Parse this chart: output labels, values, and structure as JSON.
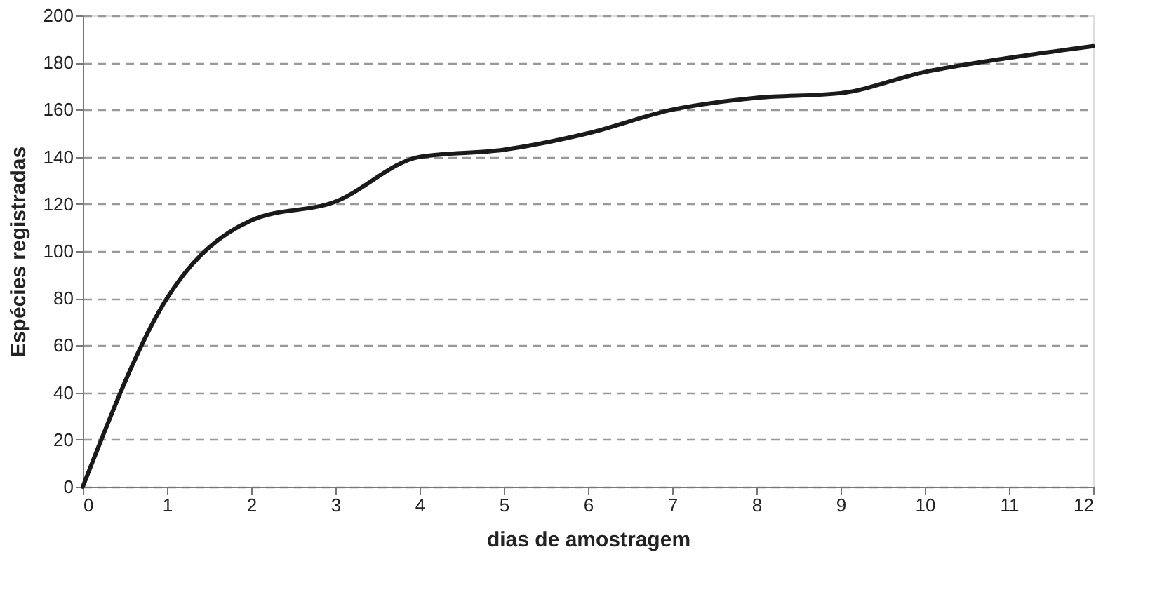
{
  "chart_data": {
    "type": "line",
    "xlabel": "dias de amostragem",
    "ylabel": "Espécies registradas",
    "x": [
      0,
      1,
      2,
      3,
      4,
      5,
      6,
      7,
      8,
      9,
      10,
      11,
      12
    ],
    "series": [
      {
        "color": "#1a1a1a",
        "values": [
          0,
          80,
          113,
          121,
          140,
          143,
          150,
          160,
          165,
          167,
          176,
          182,
          187
        ]
      }
    ],
    "xlim": [
      0,
      12
    ],
    "xticks": [
      0,
      1,
      2,
      3,
      4,
      5,
      6,
      7,
      8,
      9,
      10,
      11,
      12
    ],
    "ylim": [
      0,
      200
    ],
    "yticks": [
      0,
      20,
      40,
      60,
      80,
      100,
      120,
      140,
      160,
      180,
      200
    ],
    "grid": "y",
    "line_style": "solid",
    "marker": "none"
  }
}
